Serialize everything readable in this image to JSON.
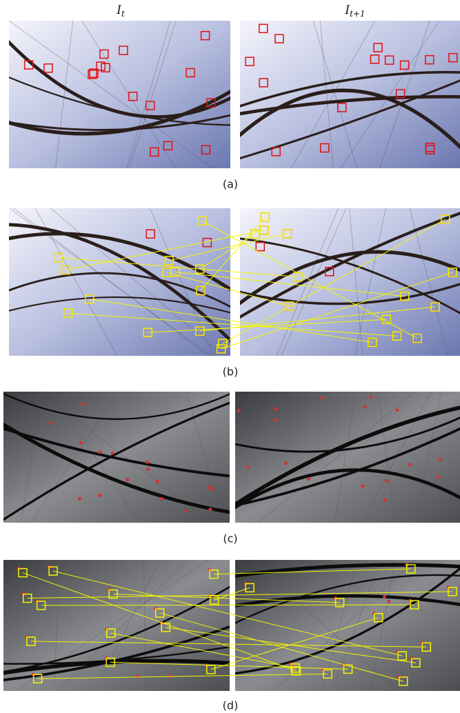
{
  "header": {
    "left": "I",
    "left_sub": "t",
    "right": "I",
    "right_sub": "t+1"
  },
  "captions": [
    "(a)",
    "(b)",
    "(c)",
    "(d)"
  ]
}
